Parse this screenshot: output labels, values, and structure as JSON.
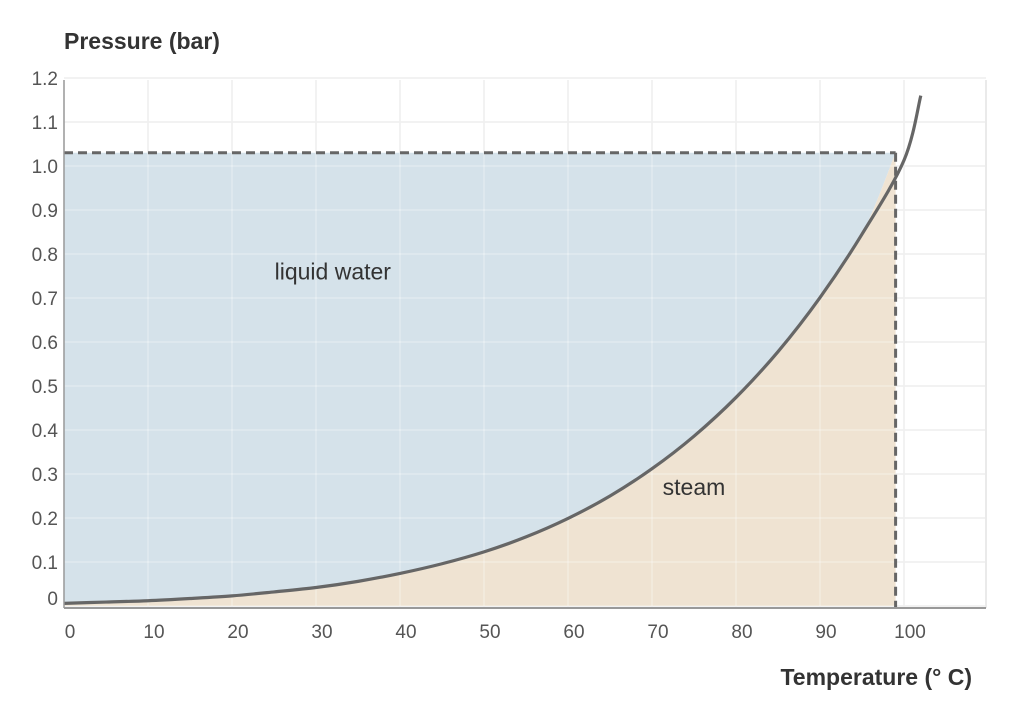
{
  "chart_data": {
    "type": "area",
    "ylabel": "Pressure (bar)",
    "xlabel": "Temperature (° C)",
    "xlim": [
      0,
      105
    ],
    "ylim": [
      0,
      1.2
    ],
    "x_ticks": [
      "0",
      "10",
      "20",
      "30",
      "40",
      "50",
      "60",
      "70",
      "80",
      "90",
      "100"
    ],
    "y_ticks": [
      "0",
      "0.1",
      "0.2",
      "0.3",
      "0.4",
      "0.5",
      "0.6",
      "0.7",
      "0.8",
      "0.9",
      "1.0",
      "1.1",
      "1.2"
    ],
    "grid": true,
    "series": [
      {
        "x": [
          0,
          5,
          10,
          15,
          20,
          25,
          30,
          35,
          40,
          45,
          50,
          55,
          60,
          65,
          70,
          75,
          80,
          85,
          90,
          95,
          100,
          102
        ],
        "y": [
          0.006,
          0.009,
          0.012,
          0.017,
          0.023,
          0.032,
          0.042,
          0.056,
          0.074,
          0.096,
          0.123,
          0.157,
          0.199,
          0.25,
          0.312,
          0.386,
          0.474,
          0.578,
          0.701,
          0.845,
          1.013,
          1.16
        ]
      }
    ],
    "reference_pressure": 1.03,
    "reference_temperature": 99,
    "regions": [
      {
        "label": "liquid water",
        "x": 32,
        "y": 0.76,
        "color": "#d5e2ea"
      },
      {
        "label": "steam",
        "x": 75,
        "y": 0.27,
        "color": "#efe3d2"
      }
    ],
    "colors": {
      "curve": "#666666",
      "reference_line": "#666666",
      "grid": "#dddddd",
      "axis": "#999999"
    }
  }
}
